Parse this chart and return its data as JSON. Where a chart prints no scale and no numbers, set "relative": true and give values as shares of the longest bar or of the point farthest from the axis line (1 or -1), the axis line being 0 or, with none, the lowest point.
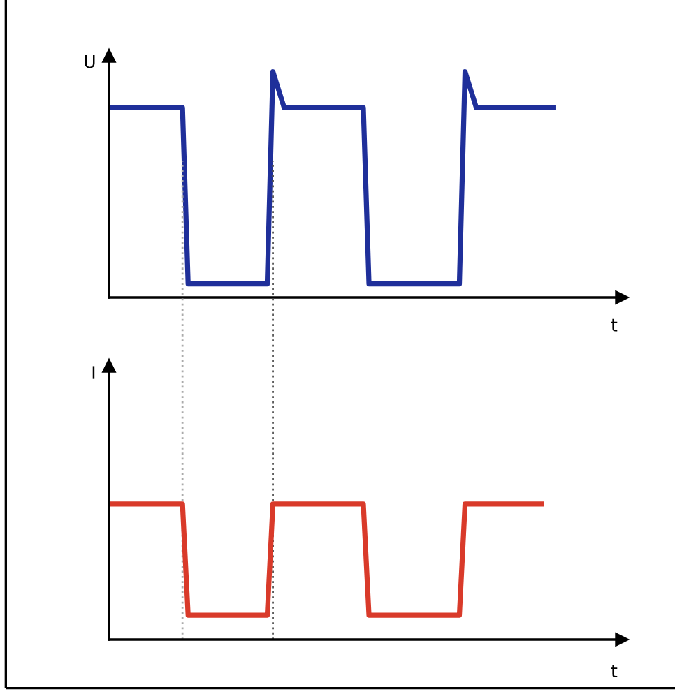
{
  "chart_data": [
    {
      "type": "line",
      "relative": true,
      "ylabel": "U",
      "xlabel": "t",
      "line_style": "solid",
      "categories": [
        null,
        null,
        null,
        null,
        null,
        null,
        null,
        null,
        null,
        null,
        null,
        null,
        null,
        null,
        null,
        null,
        null,
        null,
        null,
        null,
        null,
        null,
        null,
        null,
        null,
        null,
        null,
        null,
        null,
        null,
        null,
        null,
        null,
        null,
        null,
        null,
        null,
        null,
        null,
        null,
        null,
        null,
        null,
        null,
        null,
        null,
        null,
        null,
        null,
        null,
        null,
        null,
        null,
        null,
        null,
        null,
        null,
        null,
        null,
        null,
        null,
        null,
        null,
        null,
        null,
        null,
        null,
        null,
        null,
        null,
        null,
        null,
        null,
        null,
        null,
        null,
        null,
        null,
        null,
        null,
        null,
        null,
        null,
        null,
        null,
        null,
        null,
        null,
        null,
        null,
        null
      ],
      "series": [
        {
          "color": "#1f2f9a",
          "values": [
            0.84,
            0.84,
            0.84,
            0.84,
            0.84,
            0.84,
            0.84,
            0.84,
            0.84,
            0.84,
            0.84,
            0.84,
            0.84,
            0.84,
            0.06,
            0.06,
            0.06,
            0.06,
            0.06,
            0.06,
            0.06,
            0.06,
            0.06,
            0.06,
            0.06,
            0.06,
            0.06,
            0.06,
            0.06,
            1,
            0.92,
            0.84,
            0.84,
            0.84,
            0.84,
            0.84,
            0.84,
            0.84,
            0.84,
            0.84,
            0.84,
            0.84,
            0.84,
            0.84,
            0.84,
            0.84,
            0.06,
            0.06,
            0.06,
            0.06,
            0.06,
            0.06,
            0.06,
            0.06,
            0.06,
            0.06,
            0.06,
            0.06,
            0.06,
            0.06,
            0.06,
            0.06,
            0.06,
            1,
            0.92,
            0.84,
            0.84,
            0.84,
            0.84,
            0.84,
            0.84,
            0.84,
            0.84,
            0.84,
            0.84,
            0.84,
            0.84,
            0.84,
            0.84,
            0.84,
            null,
            null,
            null,
            null,
            null,
            null,
            null,
            null,
            null,
            null,
            null
          ]
        }
      ]
    },
    {
      "type": "line",
      "relative": true,
      "ylabel": "I",
      "xlabel": "t",
      "line_style": "solid",
      "categories": [
        null,
        null,
        null,
        null,
        null,
        null,
        null,
        null,
        null,
        null,
        null,
        null,
        null,
        null,
        null,
        null,
        null,
        null,
        null,
        null,
        null,
        null,
        null,
        null,
        null,
        null,
        null,
        null,
        null,
        null,
        null,
        null,
        null,
        null,
        null,
        null,
        null,
        null,
        null,
        null,
        null,
        null,
        null,
        null,
        null,
        null,
        null,
        null,
        null,
        null,
        null,
        null,
        null,
        null,
        null,
        null,
        null,
        null,
        null,
        null,
        null,
        null,
        null,
        null,
        null,
        null,
        null,
        null,
        null,
        null,
        null,
        null,
        null,
        null,
        null,
        null,
        null,
        null,
        null,
        null,
        null,
        null,
        null,
        null,
        null,
        null,
        null,
        null,
        null,
        null,
        null
      ],
      "series": [
        {
          "color": "#d93a2a",
          "values": [
            1,
            1,
            1,
            1,
            1,
            1,
            1,
            1,
            1,
            1,
            1,
            1,
            1,
            1,
            0.18,
            0.18,
            0.18,
            0.18,
            0.18,
            0.18,
            0.18,
            0.18,
            0.18,
            0.18,
            0.18,
            0.18,
            0.18,
            0.18,
            0.18,
            1,
            1,
            1,
            1,
            1,
            1,
            1,
            1,
            1,
            1,
            1,
            1,
            1,
            1,
            1,
            1,
            1,
            0.18,
            0.18,
            0.18,
            0.18,
            0.18,
            0.18,
            0.18,
            0.18,
            0.18,
            0.18,
            0.18,
            0.18,
            0.18,
            0.18,
            0.18,
            0.18,
            0.18,
            1,
            1,
            1,
            1,
            1,
            1,
            1,
            1,
            1,
            1,
            1,
            1,
            1,
            1,
            1,
            null,
            null,
            null,
            null,
            null,
            null,
            null,
            null,
            null,
            null,
            null,
            null,
            null
          ]
        }
      ]
    }
  ]
}
